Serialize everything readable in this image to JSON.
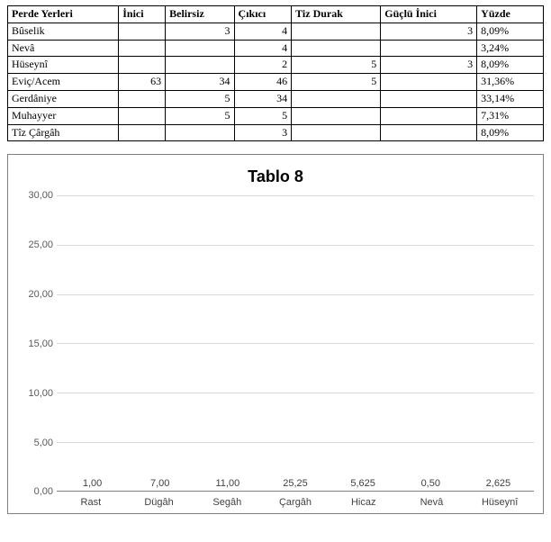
{
  "table": {
    "columns": [
      "Perde Yerleri",
      "İnici",
      "Belirsiz",
      "Çıkıcı",
      "Tiz Durak",
      "Güçlü İnici",
      "Yüzde"
    ],
    "rows": [
      [
        "Bûselik",
        "",
        "3",
        "4",
        "",
        "3",
        "8,09%"
      ],
      [
        "Nevâ",
        "",
        "",
        "4",
        "",
        "",
        "3,24%"
      ],
      [
        "Hüseynî",
        "",
        "",
        "2",
        "5",
        "3",
        "8,09%"
      ],
      [
        "Eviç/Acem",
        "63",
        "34",
        "46",
        "5",
        "",
        "31,36%"
      ],
      [
        "Gerdâniye",
        "",
        "5",
        "34",
        "",
        "",
        "33,14%"
      ],
      [
        "Muhayyer",
        "",
        "5",
        "5",
        "",
        "",
        "7,31%"
      ],
      [
        "Tîz Çârgâh",
        "",
        "",
        "3",
        "",
        "",
        "8,09%"
      ]
    ]
  },
  "chart": {
    "type": "bar",
    "title": "Tablo 8",
    "title_fontsize": 18,
    "tick_fontsize": 11,
    "categories": [
      "Rast",
      "Dügâh",
      "Segâh",
      "Çargâh",
      "Hicaz",
      "Nevâ",
      "Hüseynî"
    ],
    "values": [
      1.0,
      7.0,
      11.0,
      25.25,
      5.625,
      0.5,
      2.625
    ],
    "value_labels": [
      "1,00",
      "7,00",
      "11,00",
      "25,25",
      "5,625",
      "0,50",
      "2,625"
    ],
    "bar_color": "#4f81bd",
    "bar_width": 0.44,
    "ylim": [
      0,
      30
    ],
    "yticks": [
      0,
      5,
      10,
      15,
      20,
      25,
      30
    ],
    "ytick_labels": [
      "0,00",
      "5,00",
      "10,00",
      "15,00",
      "20,00",
      "25,00",
      "30,00"
    ],
    "background_color": "#ffffff",
    "grid_color": "#d9d9d9",
    "axis_color": "#808080",
    "text_color": "#404040"
  }
}
